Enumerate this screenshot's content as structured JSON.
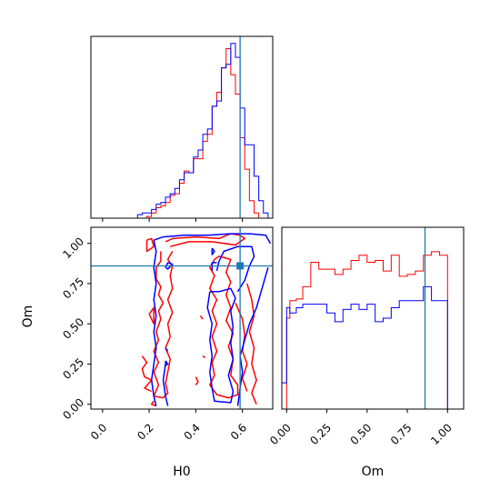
{
  "chart_data": {
    "type": "corner",
    "parameters": [
      "H0",
      "Om"
    ],
    "truth": {
      "H0": 0.59,
      "Om": 0.86
    },
    "colors": {
      "series_a": "#ff0000",
      "series_b": "#0000ff",
      "truth": "#1f77b4"
    },
    "axes": {
      "H0": {
        "range": [
          -0.05,
          0.73
        ],
        "ticks": [
          0.0,
          0.2,
          0.4,
          0.6
        ],
        "tick_labels": [
          "0.0",
          "0.2",
          "0.4",
          "0.6"
        ],
        "label": "H0"
      },
      "Om": {
        "range": [
          -0.03,
          1.1
        ],
        "ticks": [
          0.0,
          0.25,
          0.5,
          0.75,
          1.0
        ],
        "tick_labels": [
          "0.00",
          "0.25",
          "0.50",
          "0.75",
          "1.00"
        ],
        "label": "Om"
      }
    },
    "hist_H0": {
      "bin_edges": [
        0.15,
        0.17,
        0.19,
        0.21,
        0.23,
        0.25,
        0.27,
        0.29,
        0.31,
        0.33,
        0.35,
        0.37,
        0.39,
        0.41,
        0.43,
        0.45,
        0.47,
        0.49,
        0.51,
        0.53,
        0.55,
        0.57,
        0.59,
        0.61,
        0.63,
        0.65,
        0.67,
        0.69,
        0.71,
        0.73
      ],
      "series": [
        {
          "color": "red",
          "counts": [
            0,
            0,
            0.01,
            0.03,
            0.06,
            0.07,
            0.09,
            0.13,
            0.14,
            0.2,
            0.27,
            0.26,
            0.34,
            0.34,
            0.44,
            0.48,
            0.64,
            0.72,
            0.86,
            0.97,
            0.82,
            0.71,
            0.46,
            0.28,
            0.1,
            0.03,
            0,
            0,
            0
          ]
        },
        {
          "color": "blue",
          "counts": [
            0.02,
            0.03,
            0.03,
            0.05,
            0.08,
            0.09,
            0.12,
            0.14,
            0.17,
            0.22,
            0.26,
            0.26,
            0.35,
            0.39,
            0.48,
            0.51,
            0.64,
            0.67,
            0.86,
            0.88,
            1.0,
            0.92,
            0.63,
            0.42,
            0.42,
            0.24,
            0.1,
            0.03,
            0
          ]
        }
      ]
    },
    "hist_Om": {
      "bin_edges": [
        -0.03,
        0.0,
        0.02,
        0.06,
        0.1,
        0.15,
        0.2,
        0.25,
        0.3,
        0.35,
        0.4,
        0.45,
        0.5,
        0.55,
        0.6,
        0.65,
        0.7,
        0.75,
        0.8,
        0.85,
        0.9,
        0.95,
        1.0,
        1.05,
        1.1
      ],
      "series": [
        {
          "color": "red",
          "counts": [
            0,
            0.52,
            0.62,
            0.63,
            0.7,
            0.84,
            0.8,
            0.8,
            0.77,
            0.8,
            0.85,
            0.88,
            0.84,
            0.85,
            0.79,
            0.88,
            0.76,
            0.77,
            0.79,
            0.88,
            0.9,
            0.88,
            0,
            0
          ]
        },
        {
          "color": "blue",
          "counts": [
            0.15,
            0.58,
            0.55,
            0.58,
            0.6,
            0.6,
            0.6,
            0.55,
            0.5,
            0.57,
            0.6,
            0.57,
            0.6,
            0.5,
            0.52,
            0.58,
            0.62,
            0.62,
            0.62,
            0.7,
            0.62,
            0.62,
            0,
            0
          ]
        }
      ]
    },
    "contours": [
      {
        "color": "red",
        "lines": [
          [
            [
              0.19,
              1.02
            ],
            [
              0.21,
              1.03
            ],
            [
              0.22,
              0.98
            ],
            [
              0.19,
              0.95
            ],
            [
              0.19,
              1.02
            ]
          ],
          [
            [
              0.27,
              1.01
            ],
            [
              0.3,
              1.03
            ],
            [
              0.4,
              1.04
            ],
            [
              0.5,
              1.03
            ],
            [
              0.55,
              1.06
            ],
            [
              0.59,
              1.05
            ],
            [
              0.61,
              1.03
            ],
            [
              0.57,
              0.99
            ],
            [
              0.47,
              1.01
            ],
            [
              0.37,
              1.01
            ],
            [
              0.29,
              0.98
            ]
          ],
          [
            [
              0.25,
              0.95
            ],
            [
              0.25,
              0.89
            ],
            [
              0.23,
              0.85
            ],
            [
              0.23,
              0.78
            ],
            [
              0.25,
              0.73
            ],
            [
              0.24,
              0.68
            ],
            [
              0.26,
              0.63
            ],
            [
              0.24,
              0.58
            ],
            [
              0.25,
              0.53
            ],
            [
              0.23,
              0.45
            ],
            [
              0.24,
              0.4
            ],
            [
              0.22,
              0.33
            ],
            [
              0.24,
              0.26
            ],
            [
              0.22,
              0.2
            ],
            [
              0.24,
              0.12
            ],
            [
              0.22,
              0.05
            ],
            [
              0.26,
              0.04
            ],
            [
              0.28,
              0.07
            ],
            [
              0.27,
              0.13
            ],
            [
              0.28,
              0.2
            ],
            [
              0.29,
              0.28
            ],
            [
              0.27,
              0.35
            ],
            [
              0.29,
              0.42
            ],
            [
              0.28,
              0.5
            ],
            [
              0.3,
              0.57
            ],
            [
              0.28,
              0.65
            ],
            [
              0.3,
              0.72
            ],
            [
              0.29,
              0.8
            ],
            [
              0.3,
              0.86
            ],
            [
              0.28,
              0.9
            ],
            [
              0.3,
              0.95
            ]
          ],
          [
            [
              0.2,
              0.56
            ],
            [
              0.22,
              0.6
            ],
            [
              0.22,
              0.5
            ],
            [
              0.2,
              0.56
            ]
          ],
          [
            [
              0.17,
              0.3
            ],
            [
              0.19,
              0.26
            ],
            [
              0.17,
              0.22
            ],
            [
              0.18,
              0.17
            ],
            [
              0.21,
              0.15
            ],
            [
              0.18,
              0.1
            ],
            [
              0.21,
              0.08
            ]
          ],
          [
            [
              0.22,
              0.02
            ],
            [
              0.21,
              0.0
            ],
            [
              0.23,
              -0.01
            ]
          ],
          [
            [
              0.4,
              0.17
            ],
            [
              0.41,
              0.14
            ],
            [
              0.4,
              0.12
            ]
          ],
          [
            [
              0.43,
              0.3
            ],
            [
              0.44,
              0.29
            ]
          ],
          [
            [
              0.42,
              0.55
            ],
            [
              0.43,
              0.53
            ]
          ],
          [
            [
              0.48,
              0.9
            ],
            [
              0.46,
              0.85
            ],
            [
              0.48,
              0.8
            ],
            [
              0.46,
              0.72
            ],
            [
              0.49,
              0.65
            ],
            [
              0.47,
              0.58
            ],
            [
              0.49,
              0.5
            ],
            [
              0.47,
              0.42
            ],
            [
              0.49,
              0.33
            ],
            [
              0.47,
              0.26
            ],
            [
              0.48,
              0.18
            ],
            [
              0.46,
              0.12
            ],
            [
              0.49,
              0.06
            ],
            [
              0.54,
              0.04
            ],
            [
              0.58,
              0.06
            ],
            [
              0.58,
              0.12
            ],
            [
              0.55,
              0.18
            ],
            [
              0.56,
              0.28
            ],
            [
              0.54,
              0.36
            ],
            [
              0.56,
              0.44
            ],
            [
              0.53,
              0.52
            ],
            [
              0.55,
              0.6
            ],
            [
              0.53,
              0.68
            ],
            [
              0.55,
              0.76
            ],
            [
              0.53,
              0.82
            ],
            [
              0.55,
              0.9
            ],
            [
              0.5,
              0.92
            ],
            [
              0.48,
              0.9
            ]
          ],
          [
            [
              0.57,
              0.63
            ],
            [
              0.6,
              0.53
            ],
            [
              0.61,
              0.43
            ],
            [
              0.6,
              0.33
            ],
            [
              0.62,
              0.25
            ],
            [
              0.6,
              0.16
            ],
            [
              0.62,
              0.08
            ]
          ],
          [
            [
              0.62,
              0.75
            ],
            [
              0.64,
              0.65
            ],
            [
              0.65,
              0.55
            ],
            [
              0.63,
              0.45
            ],
            [
              0.65,
              0.35
            ],
            [
              0.64,
              0.25
            ],
            [
              0.66,
              0.15
            ],
            [
              0.64,
              0.07
            ],
            [
              0.66,
              0.0
            ]
          ]
        ]
      },
      {
        "color": "blue",
        "lines": [
          [
            [
              0.23,
              -0.01
            ],
            [
              0.22,
              0.05
            ],
            [
              0.21,
              0.15
            ],
            [
              0.22,
              0.25
            ],
            [
              0.23,
              0.35
            ],
            [
              0.22,
              0.45
            ],
            [
              0.23,
              0.55
            ],
            [
              0.22,
              0.65
            ],
            [
              0.23,
              0.75
            ],
            [
              0.22,
              0.85
            ],
            [
              0.23,
              0.95
            ],
            [
              0.22,
              1.02
            ],
            [
              0.26,
              1.04
            ],
            [
              0.35,
              1.05
            ],
            [
              0.45,
              1.05
            ],
            [
              0.55,
              1.06
            ],
            [
              0.63,
              1.06
            ],
            [
              0.7,
              1.05
            ],
            [
              0.72,
              1.0
            ]
          ],
          [
            [
              0.27,
              0.85
            ],
            [
              0.28,
              0.88
            ],
            [
              0.3,
              0.87
            ],
            [
              0.28,
              0.84
            ],
            [
              0.27,
              0.85
            ]
          ],
          [
            [
              0.27,
              0.25
            ],
            [
              0.26,
              0.15
            ],
            [
              0.27,
              0.05
            ],
            [
              0.28,
              -0.01
            ]
          ],
          [
            [
              0.27,
              0.27
            ],
            [
              0.28,
              0.25
            ],
            [
              0.27,
              0.24
            ],
            [
              0.27,
              0.27
            ]
          ],
          [
            [
              0.46,
              0.7
            ],
            [
              0.45,
              0.6
            ],
            [
              0.47,
              0.5
            ],
            [
              0.46,
              0.4
            ],
            [
              0.47,
              0.3
            ],
            [
              0.46,
              0.2
            ],
            [
              0.47,
              0.1
            ],
            [
              0.48,
              0.02
            ],
            [
              0.55,
              0.01
            ],
            [
              0.56,
              0.08
            ],
            [
              0.54,
              0.18
            ],
            [
              0.56,
              0.28
            ],
            [
              0.55,
              0.38
            ],
            [
              0.56,
              0.48
            ],
            [
              0.55,
              0.58
            ],
            [
              0.57,
              0.66
            ],
            [
              0.55,
              0.72
            ],
            [
              0.5,
              0.7
            ],
            [
              0.46,
              0.7
            ]
          ],
          [
            [
              0.47,
              0.83
            ],
            [
              0.47,
              0.88
            ],
            [
              0.49,
              0.88
            ]
          ],
          [
            [
              0.49,
              0.83
            ],
            [
              0.5,
              0.89
            ],
            [
              0.52,
              0.95
            ],
            [
              0.58,
              0.98
            ],
            [
              0.64,
              0.98
            ],
            [
              0.65,
              0.92
            ],
            [
              0.63,
              0.86
            ],
            [
              0.61,
              0.77
            ],
            [
              0.58,
              0.7
            ]
          ],
          [
            [
              0.58,
              -0.01
            ],
            [
              0.59,
              0.1
            ],
            [
              0.6,
              0.2
            ],
            [
              0.59,
              0.3
            ],
            [
              0.61,
              0.4
            ],
            [
              0.63,
              0.5
            ],
            [
              0.66,
              0.6
            ],
            [
              0.68,
              0.7
            ],
            [
              0.7,
              0.8
            ],
            [
              0.71,
              0.85
            ]
          ],
          [
            [
              0.47,
              0.97
            ],
            [
              0.48,
              0.95
            ],
            [
              0.47,
              0.93
            ],
            [
              0.47,
              0.97
            ]
          ],
          [
            [
              0.27,
              0.35
            ],
            [
              0.28,
              0.33
            ]
          ]
        ]
      }
    ]
  }
}
